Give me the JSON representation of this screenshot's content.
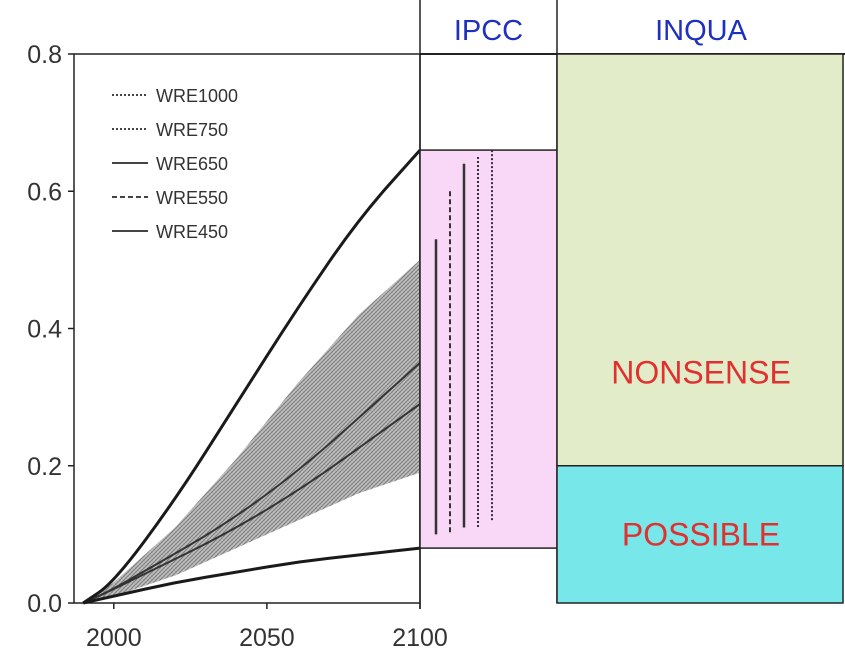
{
  "chart_data": {
    "type": "line",
    "title": "",
    "xlabel": "",
    "ylabel": "",
    "xlim": [
      1987,
      2100
    ],
    "ylim": [
      0,
      0.8
    ],
    "x_ticks": [
      "2000",
      "2050",
      "2100"
    ],
    "y_ticks": [
      "0.0",
      "0.2",
      "0.4",
      "0.6",
      "0.8"
    ],
    "legend_position": "top-left",
    "series": [
      {
        "name": "WRE1000",
        "style": "dotted"
      },
      {
        "name": "WRE750",
        "style": "dotted"
      },
      {
        "name": "WRE650",
        "style": "solid"
      },
      {
        "name": "WRE550",
        "style": "dashed"
      },
      {
        "name": "WRE450",
        "style": "solid"
      }
    ],
    "envelope": {
      "x": [
        1990,
        2000,
        2020,
        2040,
        2060,
        2080,
        2100
      ],
      "upper": [
        0.0,
        0.03,
        0.15,
        0.29,
        0.43,
        0.56,
        0.66
      ],
      "lower": [
        0.0,
        0.01,
        0.03,
        0.045,
        0.06,
        0.07,
        0.08
      ]
    },
    "shaded_band": {
      "x": [
        1990,
        2000,
        2020,
        2040,
        2060,
        2080,
        2100
      ],
      "upper": [
        0.0,
        0.03,
        0.11,
        0.21,
        0.32,
        0.42,
        0.5
      ],
      "lower": [
        0.0,
        0.01,
        0.04,
        0.08,
        0.12,
        0.16,
        0.19
      ]
    },
    "central_lines": [
      {
        "x": [
          1990,
          2000,
          2050,
          2100
        ],
        "y": [
          0.0,
          0.02,
          0.15,
          0.35
        ]
      },
      {
        "x": [
          1990,
          2000,
          2050,
          2100
        ],
        "y": [
          0.0,
          0.02,
          0.13,
          0.29
        ]
      }
    ],
    "ipcc_bars": [
      {
        "series": "WRE450",
        "low": 0.1,
        "high": 0.53
      },
      {
        "series": "WRE550",
        "low": 0.1,
        "high": 0.6
      },
      {
        "series": "WRE650",
        "low": 0.11,
        "high": 0.64
      },
      {
        "series": "WRE750",
        "low": 0.11,
        "high": 0.65
      },
      {
        "series": "WRE1000",
        "low": 0.12,
        "high": 0.66
      }
    ],
    "ipcc_box": {
      "label": "IPCC",
      "low": 0.08,
      "high": 0.66,
      "color": "#f8d8f6"
    },
    "inqua": {
      "label": "INQUA",
      "zones": [
        {
          "label": "NONSENSE",
          "low": 0.2,
          "high": 0.8,
          "color": "#e3ecc9"
        },
        {
          "label": "POSSIBLE",
          "low": 0.0,
          "high": 0.2,
          "color": "#77e7e9"
        }
      ]
    }
  }
}
